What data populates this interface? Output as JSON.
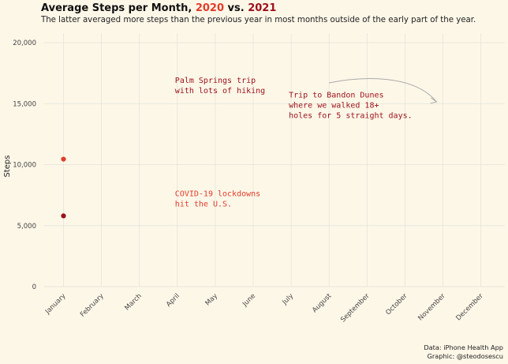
{
  "chart_data": {
    "type": "scatter",
    "title_parts": {
      "prefix": "Average Steps per Month, ",
      "year1": "2020",
      "mid": " vs. ",
      "year2": "2021"
    },
    "subtitle": "The latter averaged more steps than the previous year in most months outside of the early part of the year.",
    "xlabel": "",
    "ylabel": "Steps",
    "categories": [
      "January",
      "February",
      "March",
      "April",
      "May",
      "June",
      "July",
      "August",
      "September",
      "October",
      "November",
      "December"
    ],
    "ylim": [
      0,
      20000
    ],
    "yticks": [
      0,
      5000,
      10000,
      15000,
      20000
    ],
    "ytick_labels": [
      "0",
      "5,000",
      "10,000",
      "15,000",
      "20,000"
    ],
    "grid": true,
    "series": [
      {
        "name": "2020",
        "color": "#e23c2a",
        "values": [
          10450,
          null,
          null,
          null,
          null,
          null,
          null,
          null,
          null,
          null,
          null,
          null
        ]
      },
      {
        "name": "2021",
        "color": "#9b1019",
        "values": [
          5800,
          null,
          null,
          null,
          null,
          null,
          null,
          null,
          null,
          null,
          null,
          null
        ]
      }
    ],
    "annotations": [
      {
        "lines": [
          "Palm Springs trip",
          "with lots of hiking"
        ],
        "color": "#9b1019",
        "anchor_category": "April",
        "y": 16700
      },
      {
        "lines": [
          "Trip to Bandon Dunes",
          "where we walked 18+",
          "holes for 5 straight days."
        ],
        "color": "#9b1019",
        "anchor_category": "July",
        "y": 15500
      },
      {
        "lines": [
          "COVID-19 lockdowns",
          "hit the U.S."
        ],
        "color": "#e23c2a",
        "anchor_category": "April",
        "y": 7400
      }
    ],
    "arrow_color": "#aaaaaa",
    "caption": [
      "Data: iPhone Health App",
      "Graphic: @steodosescu"
    ]
  }
}
